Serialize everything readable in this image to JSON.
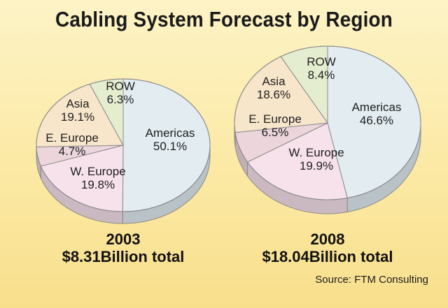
{
  "title": "Cabling System Forecast by Region",
  "source": "Source: FTM Consulting",
  "colors": {
    "Americas": "#e2ecf1",
    "W. Europe": "#f7e2ec",
    "E. Europe": "#ecd6dc",
    "Asia": "#f8e6cb",
    "ROW": "#e5edd0"
  },
  "chart_data": [
    {
      "type": "pie",
      "year": "2003",
      "total_label": "$8.31Billion total",
      "slices": [
        {
          "name": "Americas",
          "value": 50.1,
          "label": "50.1%"
        },
        {
          "name": "W. Europe",
          "value": 19.8,
          "label": "19.8%"
        },
        {
          "name": "E. Europe",
          "value": 4.7,
          "label": "4.7%"
        },
        {
          "name": "Asia",
          "value": 19.1,
          "label": "19.1%"
        },
        {
          "name": "ROW",
          "value": 6.3,
          "label": "6.3%"
        }
      ]
    },
    {
      "type": "pie",
      "year": "2008",
      "total_label": "$18.04Billion total",
      "slices": [
        {
          "name": "Americas",
          "value": 46.6,
          "label": "46.6%"
        },
        {
          "name": "W. Europe",
          "value": 19.9,
          "label": "19.9%"
        },
        {
          "name": "E. Europe",
          "value": 6.5,
          "label": "6.5%"
        },
        {
          "name": "Asia",
          "value": 18.6,
          "label": "18.6%"
        },
        {
          "name": "ROW",
          "value": 8.4,
          "label": "8.4%"
        }
      ]
    }
  ]
}
